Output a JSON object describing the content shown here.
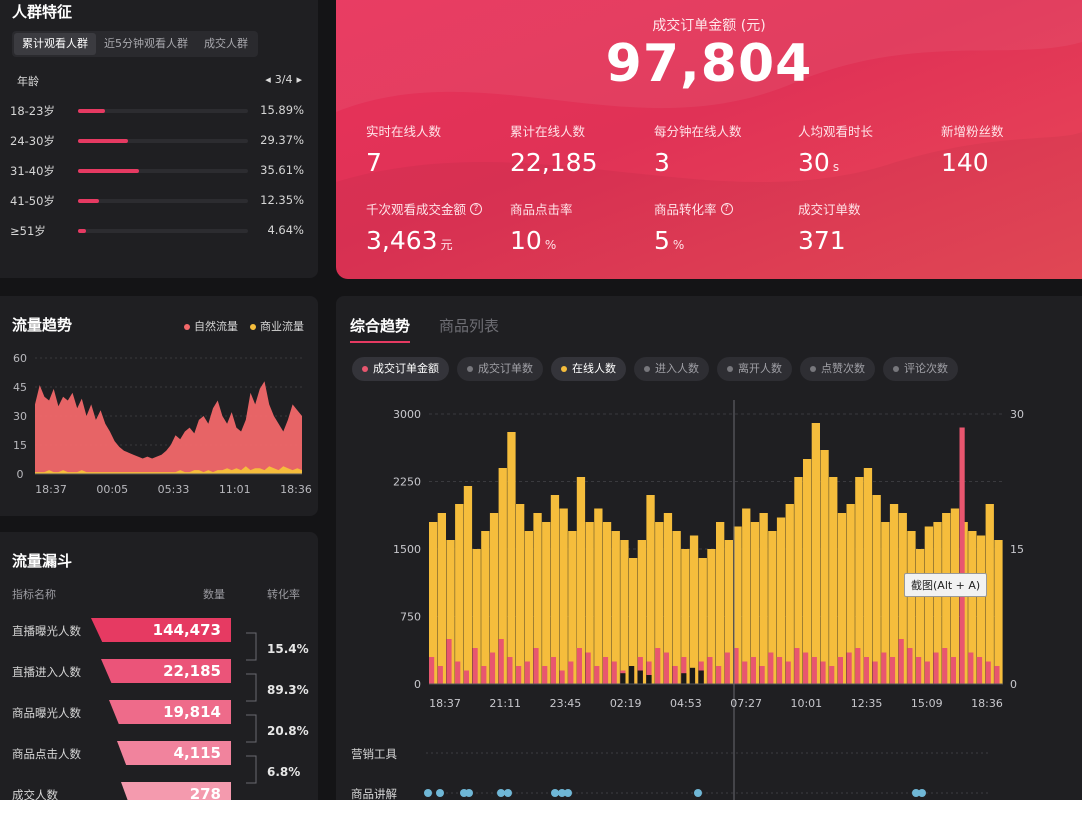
{
  "audience": {
    "title": "人群特征",
    "tabs": [
      "累计观看人群",
      "近5分钟观看人群",
      "成交人群"
    ],
    "active_tab": 0,
    "age_label": "年龄",
    "pager": "3/4",
    "rows": [
      {
        "name": "18-23岁",
        "pct_text": "15.89%",
        "pct": 15.89
      },
      {
        "name": "24-30岁",
        "pct_text": "29.37%",
        "pct": 29.37
      },
      {
        "name": "31-40岁",
        "pct_text": "35.61%",
        "pct": 35.61
      },
      {
        "name": "41-50岁",
        "pct_text": "12.35%",
        "pct": 12.35
      },
      {
        "name": "≥51岁",
        "pct_text": "4.64%",
        "pct": 4.64
      }
    ],
    "accent": "#e63a62"
  },
  "kpi": {
    "main_label": "成交订单金额 (元)",
    "main_value": "97,804",
    "cells": [
      {
        "label": "实时在线人数",
        "value": "7",
        "unit": "",
        "help": false
      },
      {
        "label": "累计在线人数",
        "value": "22,185",
        "unit": "",
        "help": false
      },
      {
        "label": "每分钟在线人数",
        "value": "3",
        "unit": "",
        "help": false
      },
      {
        "label": "人均观看时长",
        "value": "30",
        "unit": "s",
        "help": false
      },
      {
        "label": "新增粉丝数",
        "value": "140",
        "unit": "",
        "help": false
      },
      {
        "label": "千次观看成交金额",
        "value": "3,463",
        "unit": "元",
        "help": true
      },
      {
        "label": "商品点击率",
        "value": "10",
        "unit": "%",
        "help": false
      },
      {
        "label": "商品转化率",
        "value": "5",
        "unit": "%",
        "help": true
      },
      {
        "label": "成交订单数",
        "value": "371",
        "unit": "",
        "help": false
      }
    ]
  },
  "trend": {
    "title": "流量趋势",
    "legend": [
      {
        "name": "自然流量",
        "color": "#f2686a"
      },
      {
        "name": "商业流量",
        "color": "#f5bd3c"
      }
    ]
  },
  "funnel": {
    "title": "流量漏斗",
    "headers": [
      "指标名称",
      "数量",
      "转化率"
    ],
    "rows": [
      {
        "name": "直播曝光人数",
        "value": "144,473",
        "color": "#e63a62"
      },
      {
        "name": "直播进入人数",
        "value": "22,185",
        "color": "#eb5479"
      },
      {
        "name": "商品曝光人数",
        "value": "19,814",
        "color": "#ee6b8a"
      },
      {
        "name": "商品点击人数",
        "value": "4,115",
        "color": "#f1839d"
      },
      {
        "name": "成交人数",
        "value": "278",
        "color": "#f49aae"
      }
    ],
    "conversions": [
      "15.4%",
      "89.3%",
      "20.8%",
      "6.8%"
    ]
  },
  "main": {
    "tabs": [
      "综合趋势",
      "商品列表"
    ],
    "active_tab": 0,
    "chips": [
      {
        "label": "成交订单金额",
        "on": true,
        "color": "#e8566f"
      },
      {
        "label": "成交订单数",
        "on": false,
        "color": "#77777c"
      },
      {
        "label": "在线人数",
        "on": true,
        "color": "#f5bd3c"
      },
      {
        "label": "进入人数",
        "on": false,
        "color": "#77777c"
      },
      {
        "label": "离开人数",
        "on": false,
        "color": "#77777c"
      },
      {
        "label": "点赞次数",
        "on": false,
        "color": "#77777c"
      },
      {
        "label": "评论次数",
        "on": false,
        "color": "#77777c"
      }
    ],
    "tooltip": "截图(Alt + A)",
    "tracks": [
      "营销工具",
      "商品讲解"
    ],
    "track_dot_color": "#6fb7d6"
  },
  "chart_data": [
    {
      "type": "area",
      "title": "流量趋势",
      "x_ticks": [
        "18:37",
        "00:05",
        "05:33",
        "11:01",
        "18:36"
      ],
      "y_ticks": [
        0,
        15,
        30,
        45,
        60
      ],
      "ylim": [
        0,
        60
      ],
      "series": [
        {
          "name": "自然流量",
          "color": "#f2686a",
          "values": [
            36,
            46,
            40,
            38,
            44,
            35,
            40,
            38,
            42,
            34,
            39,
            30,
            36,
            28,
            33,
            26,
            22,
            17,
            14,
            12,
            11,
            10,
            9,
            8,
            9,
            8,
            9,
            10,
            12,
            15,
            20,
            18,
            22,
            24,
            21,
            28,
            30,
            26,
            34,
            38,
            30,
            26,
            32,
            24,
            22,
            28,
            42,
            36,
            44,
            48,
            36,
            30,
            26,
            22,
            28,
            36,
            33,
            30
          ]
        },
        {
          "name": "商业流量",
          "color": "#f5bd3c",
          "values": [
            1,
            1,
            1,
            2,
            1,
            1,
            2,
            1,
            1,
            1,
            2,
            1,
            1,
            1,
            1,
            1,
            1,
            1,
            1,
            1,
            1,
            1,
            1,
            1,
            1,
            1,
            1,
            1,
            1,
            1,
            1,
            2,
            1,
            1,
            2,
            2,
            1,
            2,
            1,
            2,
            2,
            3,
            2,
            3,
            2,
            4,
            2,
            3,
            3,
            2,
            4,
            3,
            2,
            4,
            3,
            2,
            3,
            2
          ]
        }
      ]
    },
    {
      "type": "bar",
      "title": "综合趋势",
      "x_ticks": [
        "18:37",
        "21:11",
        "23:45",
        "02:19",
        "04:53",
        "07:27",
        "10:01",
        "12:35",
        "15:09",
        "18:36"
      ],
      "y_ticks_left": [
        0,
        750,
        1500,
        2250,
        3000
      ],
      "y_ticks_right": [
        0,
        15,
        30
      ],
      "ylim_left": [
        0,
        3000
      ],
      "ylim_right": [
        0,
        30
      ],
      "series": [
        {
          "name": "在线人数",
          "color": "#f5bd3c",
          "values": [
            1800,
            1900,
            1600,
            2000,
            2200,
            1500,
            1700,
            1900,
            2400,
            2800,
            2000,
            1700,
            1900,
            1800,
            2100,
            1950,
            1700,
            2300,
            1800,
            1950,
            1800,
            1700,
            1600,
            1400,
            1600,
            2100,
            1800,
            1900,
            1700,
            1500,
            1650,
            1400,
            1500,
            1800,
            1600,
            1750,
            1950,
            1800,
            1900,
            1700,
            1850,
            2000,
            2300,
            2500,
            2900,
            2600,
            2300,
            1900,
            2000,
            2300,
            2400,
            2100,
            1800,
            2000,
            1900,
            1700,
            1500,
            1750,
            1800,
            1900,
            1950,
            1800,
            1700,
            1650,
            2000,
            1600
          ]
        },
        {
          "name": "成交订单金额",
          "color": "#e8566f",
          "values": [
            300,
            200,
            500,
            250,
            150,
            400,
            200,
            350,
            500,
            300,
            200,
            250,
            400,
            200,
            300,
            150,
            250,
            400,
            350,
            200,
            300,
            250,
            150,
            200,
            300,
            250,
            400,
            350,
            200,
            300,
            150,
            250,
            300,
            200,
            350,
            400,
            250,
            300,
            200,
            350,
            300,
            250,
            400,
            350,
            300,
            250,
            200,
            300,
            350,
            400,
            300,
            250,
            350,
            300,
            500,
            400,
            300,
            250,
            350,
            400,
            300,
            2850,
            350,
            300,
            250,
            200
          ]
        },
        {
          "name": "成交订单数",
          "color": "#1a1a1a",
          "values": [
            0,
            0,
            0,
            0,
            0,
            0,
            0,
            0,
            0,
            0,
            0,
            0,
            0,
            0,
            0,
            0,
            0,
            0,
            0,
            0,
            0,
            0,
            120,
            200,
            150,
            100,
            0,
            0,
            0,
            120,
            180,
            150,
            0,
            0,
            0,
            0,
            0,
            0,
            0,
            0,
            0,
            0,
            0,
            0,
            0,
            0,
            0,
            0,
            0,
            0,
            0,
            0,
            0,
            0,
            0,
            0,
            0,
            0,
            0,
            0,
            0,
            0,
            0,
            0,
            0,
            0
          ]
        }
      ]
    }
  ]
}
